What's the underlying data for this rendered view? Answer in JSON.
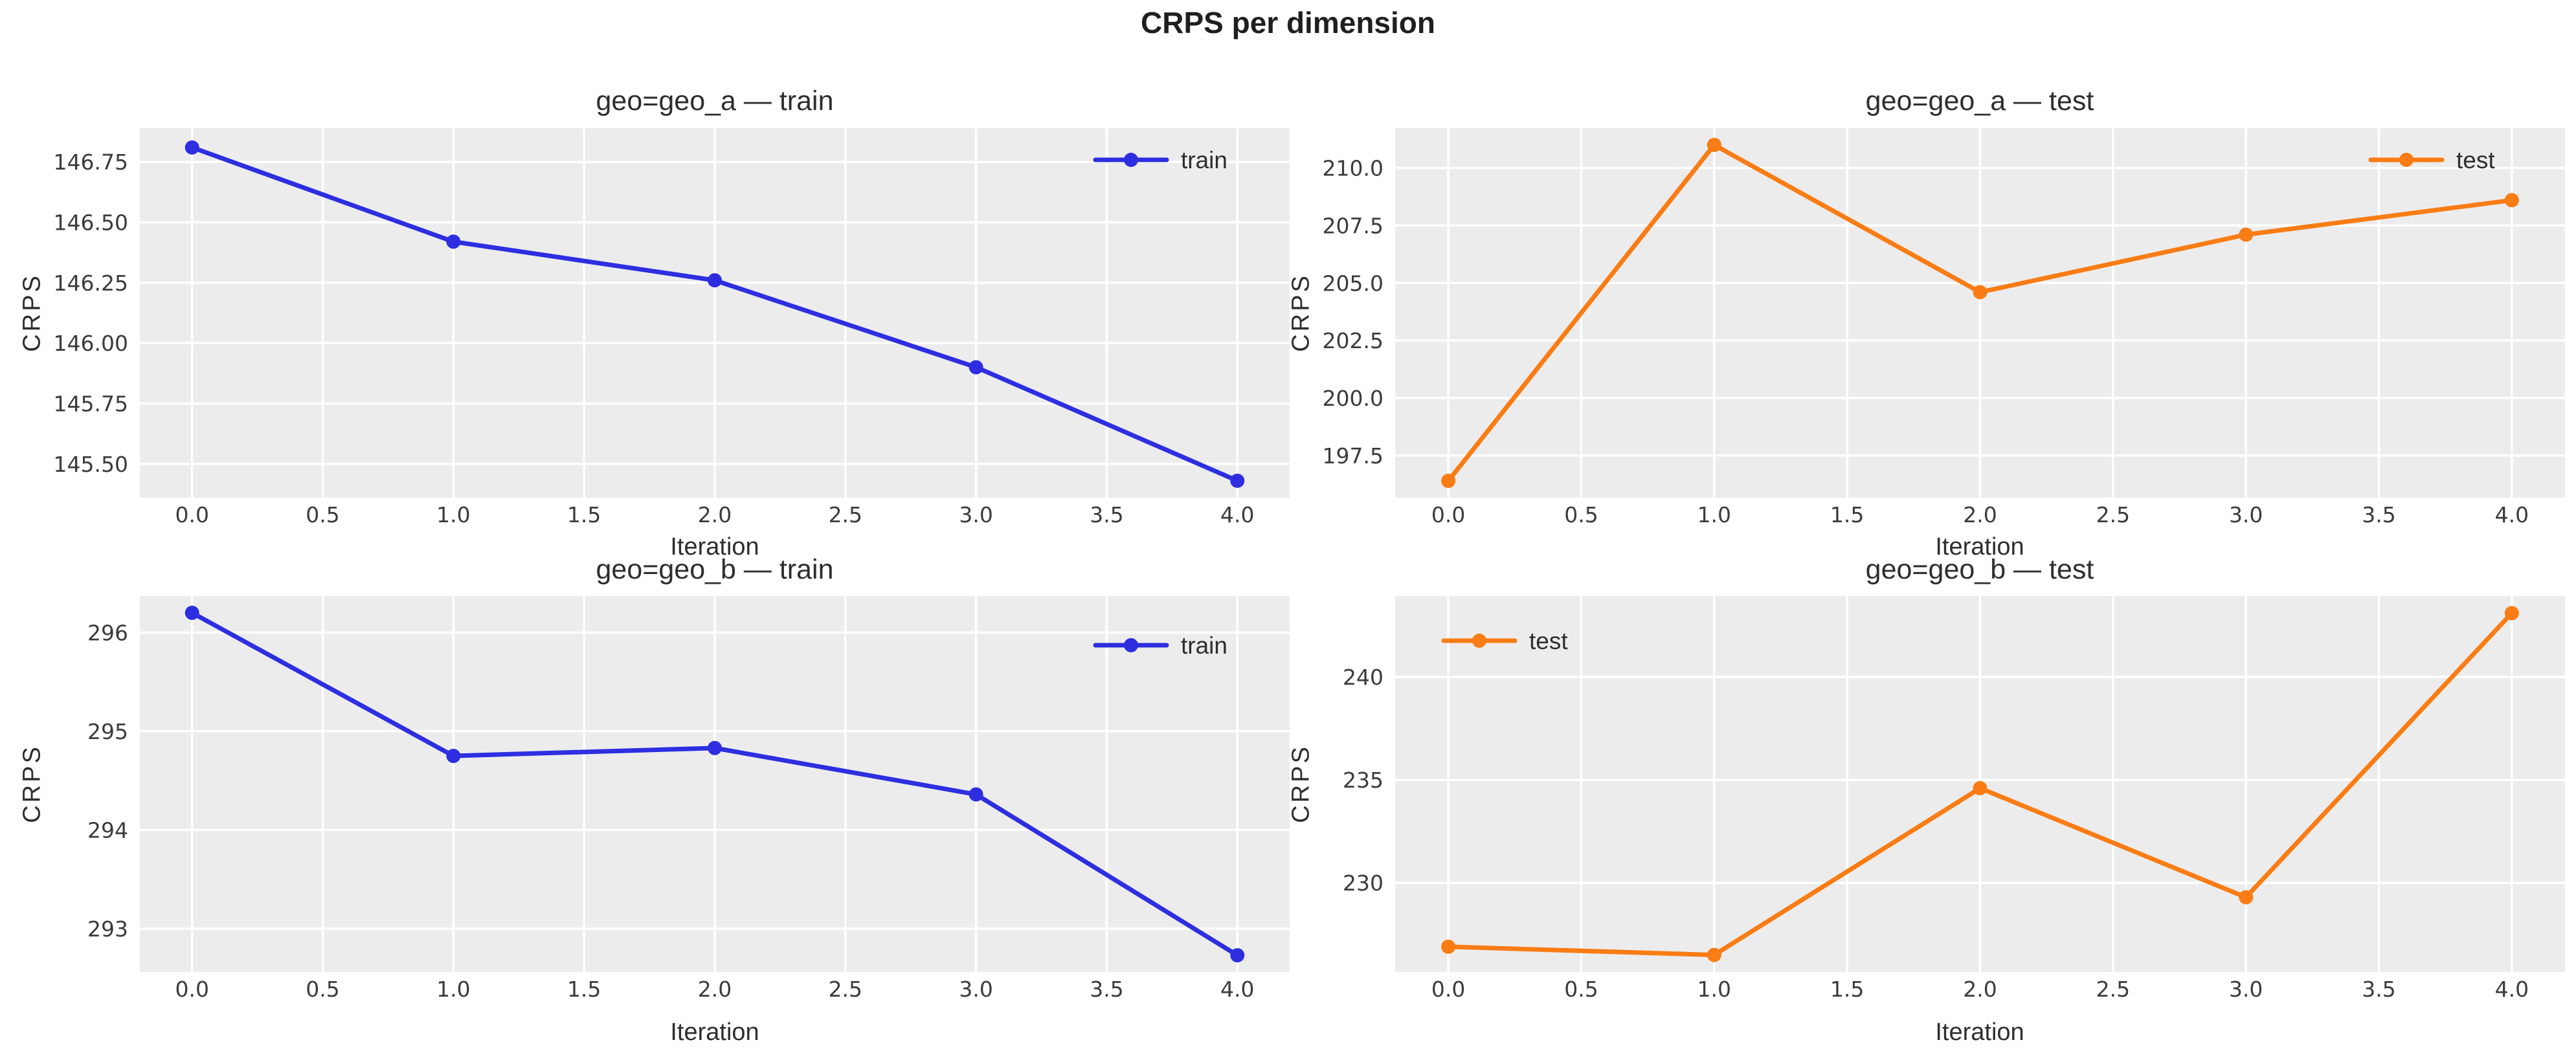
{
  "figure": {
    "suptitle": "CRPS per dimension",
    "colors": {
      "train_line": "#2e2ee0",
      "test_line": "#f97c14",
      "plot_background": "#ececec",
      "grid": "#ffffff",
      "tick_text": "#3b3b3b",
      "title_text": "#2e2e2e"
    }
  },
  "chart_data": [
    {
      "type": "line",
      "title": "geo=geo_a — train",
      "xlabel": "Iteration",
      "ylabel": "CRPS",
      "legend": {
        "label": "train",
        "position": "upper-right"
      },
      "grid": true,
      "xlim": [
        -0.2,
        4.2
      ],
      "ylim": [
        145.36,
        146.89
      ],
      "xticks": {
        "values": [
          0,
          0.5,
          1,
          1.5,
          2,
          2.5,
          3,
          3.5,
          4
        ],
        "labels": [
          "0.0",
          "0.5",
          "1.0",
          "1.5",
          "2.0",
          "2.5",
          "3.0",
          "3.5",
          "4.0"
        ]
      },
      "yticks": {
        "values": [
          145.5,
          145.75,
          146.0,
          146.25,
          146.5,
          146.75
        ],
        "labels": [
          "145.50",
          "145.75",
          "146.00",
          "146.25",
          "146.50",
          "146.75"
        ]
      },
      "series": [
        {
          "name": "train",
          "color": "#2e2ee0",
          "x": [
            0,
            1,
            2,
            3,
            4
          ],
          "y": [
            146.81,
            146.42,
            146.26,
            145.9,
            145.43
          ]
        }
      ]
    },
    {
      "type": "line",
      "title": "geo=geo_a — test",
      "xlabel": "Iteration",
      "ylabel": "CRPS",
      "legend": {
        "label": "test",
        "position": "upper-right"
      },
      "grid": true,
      "xlim": [
        -0.2,
        4.2
      ],
      "ylim": [
        195.67,
        211.73
      ],
      "xticks": {
        "values": [
          0,
          0.5,
          1,
          1.5,
          2,
          2.5,
          3,
          3.5,
          4
        ],
        "labels": [
          "0.0",
          "0.5",
          "1.0",
          "1.5",
          "2.0",
          "2.5",
          "3.0",
          "3.5",
          "4.0"
        ]
      },
      "yticks": {
        "values": [
          197.5,
          200.0,
          202.5,
          205.0,
          207.5,
          210.0
        ],
        "labels": [
          "197.5",
          "200.0",
          "202.5",
          "205.0",
          "207.5",
          "210.0"
        ]
      },
      "series": [
        {
          "name": "test",
          "color": "#f97c14",
          "x": [
            0,
            1,
            2,
            3,
            4
          ],
          "y": [
            196.4,
            211.0,
            204.6,
            207.1,
            208.6
          ]
        }
      ]
    },
    {
      "type": "line",
      "title": "geo=geo_b — train",
      "xlabel": "Iteration",
      "ylabel": "CRPS",
      "legend": {
        "label": "train",
        "position": "upper-right"
      },
      "grid": true,
      "xlim": [
        -0.2,
        4.2
      ],
      "ylim": [
        292.56,
        296.37
      ],
      "xticks": {
        "values": [
          0,
          0.5,
          1,
          1.5,
          2,
          2.5,
          3,
          3.5,
          4
        ],
        "labels": [
          "0.0",
          "0.5",
          "1.0",
          "1.5",
          "2.0",
          "2.5",
          "3.0",
          "3.5",
          "4.0"
        ]
      },
      "yticks": {
        "values": [
          293,
          294,
          295,
          296
        ],
        "labels": [
          "293",
          "294",
          "295",
          "296"
        ]
      },
      "series": [
        {
          "name": "train",
          "color": "#2e2ee0",
          "x": [
            0,
            1,
            2,
            3,
            4
          ],
          "y": [
            296.2,
            294.75,
            294.83,
            294.36,
            292.73
          ]
        }
      ]
    },
    {
      "type": "line",
      "title": "geo=geo_b — test",
      "xlabel": "Iteration",
      "ylabel": "CRPS",
      "legend": {
        "label": "test",
        "position": "upper-left"
      },
      "grid": true,
      "xlim": [
        -0.2,
        4.2
      ],
      "ylim": [
        225.67,
        243.93
      ],
      "xticks": {
        "values": [
          0,
          0.5,
          1,
          1.5,
          2,
          2.5,
          3,
          3.5,
          4
        ],
        "labels": [
          "0.0",
          "0.5",
          "1.0",
          "1.5",
          "2.0",
          "2.5",
          "3.0",
          "3.5",
          "4.0"
        ]
      },
      "yticks": {
        "values": [
          230,
          235,
          240
        ],
        "labels": [
          "230",
          "235",
          "240"
        ]
      },
      "series": [
        {
          "name": "test",
          "color": "#f97c14",
          "x": [
            0,
            1,
            2,
            3,
            4
          ],
          "y": [
            226.9,
            226.5,
            234.6,
            229.3,
            243.1
          ]
        }
      ]
    }
  ]
}
